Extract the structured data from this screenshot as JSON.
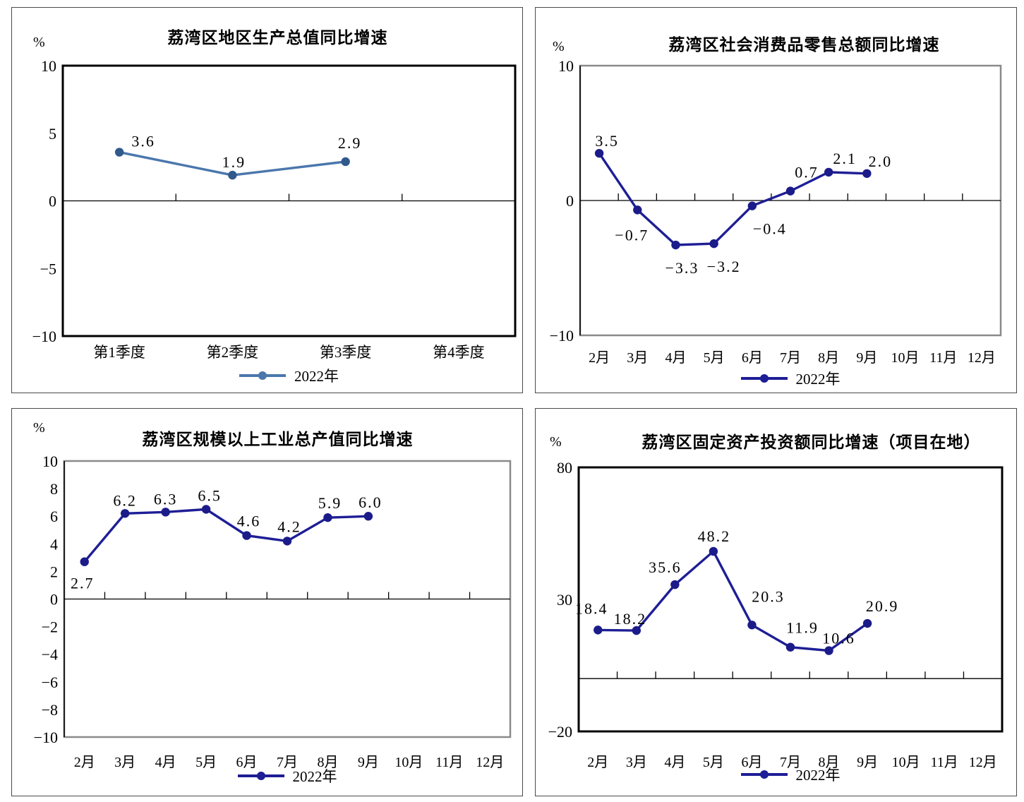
{
  "chart_data": [
    {
      "id": "gdp",
      "type": "line",
      "title": "荔湾区地区生产总值同比增速",
      "unit": "%",
      "legend": "2022年",
      "line_color": "#4a77ac",
      "marker_color": "#30598c",
      "categories": [
        "第1季度",
        "第2季度",
        "第3季度",
        "第4季度"
      ],
      "values": [
        3.6,
        1.9,
        2.9,
        null
      ],
      "ylim": [
        -10,
        10
      ],
      "yticks": [
        10,
        5,
        0,
        -5,
        -10
      ],
      "x_axis_at": 0,
      "grid": false,
      "legend_position": "bottom"
    },
    {
      "id": "retail-sales",
      "type": "line",
      "title": "荔湾区社会消费品零售总额同比增速",
      "unit": "%",
      "legend": "2022年",
      "line_color": "#1e1e96",
      "marker_color": "#1b1b8a",
      "categories": [
        "2月",
        "3月",
        "4月",
        "5月",
        "6月",
        "7月",
        "8月",
        "9月",
        "10月",
        "11月",
        "12月"
      ],
      "values": [
        3.5,
        -0.7,
        -3.3,
        -3.2,
        -0.4,
        0.7,
        2.1,
        2.0,
        null,
        null,
        null
      ],
      "ylim": [
        -10,
        10
      ],
      "yticks": [
        10,
        0,
        -10
      ],
      "x_axis_at": 0,
      "grid": false,
      "legend_position": "bottom"
    },
    {
      "id": "industrial-output",
      "type": "line",
      "title": "荔湾区规模以上工业总产值同比增速",
      "unit": "%",
      "legend": "2022年",
      "line_color": "#1e1e96",
      "marker_color": "#1b1b8a",
      "categories": [
        "2月",
        "3月",
        "4月",
        "5月",
        "6月",
        "7月",
        "8月",
        "9月",
        "10月",
        "11月",
        "12月"
      ],
      "values": [
        2.7,
        6.2,
        6.3,
        6.5,
        4.6,
        4.2,
        5.9,
        6.0,
        null,
        null,
        null
      ],
      "ylim": [
        -10,
        10
      ],
      "yticks": [
        10,
        8,
        6,
        4,
        2,
        0,
        -2,
        -4,
        -6,
        -8,
        -10
      ],
      "x_axis_at": 0,
      "grid": false,
      "legend_position": "bottom"
    },
    {
      "id": "fixed-investment",
      "type": "line",
      "title": "荔湾区固定资产投资额同比增速（项目在地）",
      "unit": "%",
      "legend": "2022年",
      "line_color": "#1e1e96",
      "marker_color": "#1b1b8a",
      "categories": [
        "2月",
        "3月",
        "4月",
        "5月",
        "6月",
        "7月",
        "8月",
        "9月",
        "10月",
        "11月",
        "12月"
      ],
      "values": [
        18.4,
        18.2,
        35.6,
        48.2,
        20.3,
        11.9,
        10.6,
        20.9,
        null,
        null,
        null
      ],
      "ylim": [
        -20,
        80
      ],
      "yticks": [
        80,
        30,
        -20
      ],
      "x_axis_at": 0,
      "grid": false,
      "legend_position": "bottom"
    }
  ]
}
